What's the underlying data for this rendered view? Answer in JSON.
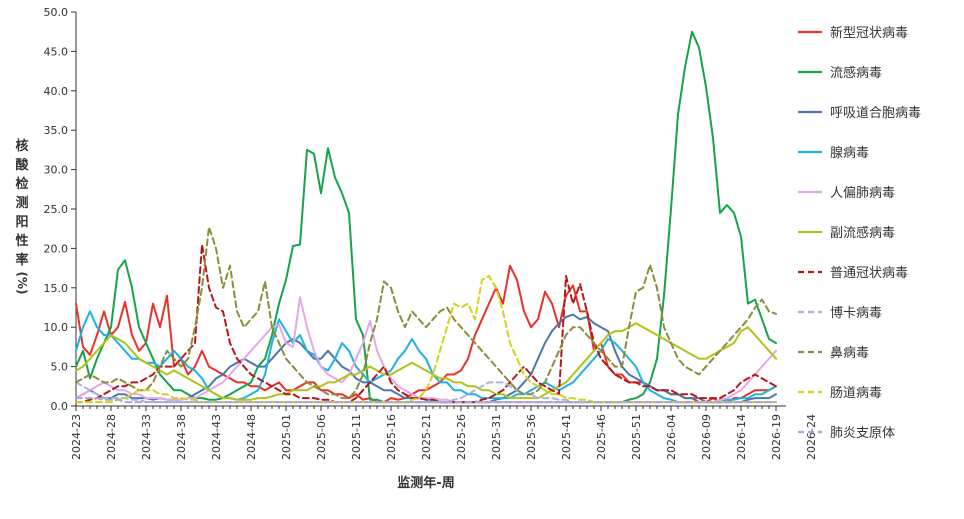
{
  "chart_data": {
    "type": "line",
    "title": "",
    "xlabel": "监测年-周",
    "ylabel": "核酸检测阳性率(%)",
    "ylim": [
      0,
      50
    ],
    "yticks": [
      "0.0",
      "5.0",
      "10.0",
      "15.0",
      "20.0",
      "25.0",
      "30.0",
      "35.0",
      "40.0",
      "45.0",
      "50.0"
    ],
    "xtick_labels": [
      "2024-23",
      "2024-28",
      "2024-33",
      "2024-38",
      "2024-43",
      "2024-48",
      "2025-01",
      "2025-06",
      "2025-11",
      "2025-16",
      "2025-21",
      "2025-26",
      "2025-31",
      "2025-36",
      "2025-41",
      "2025-46",
      "2025-51",
      "2026-04",
      "2026-09",
      "2026-14",
      "2026-19",
      "2026-24"
    ],
    "num_weeks": 101,
    "legend_position": "right",
    "grid": false,
    "series": [
      {
        "name": "新型冠状病毒",
        "color": "#e8312a",
        "dash": "solid",
        "values": [
          13,
          7.5,
          6.5,
          9,
          12,
          9,
          10,
          13.2,
          9,
          7,
          8,
          13,
          10,
          14,
          5,
          6,
          4,
          5,
          7,
          5,
          4.5,
          4,
          3.5,
          3,
          3,
          2.5,
          2.5,
          2,
          2.5,
          3,
          2,
          2,
          2.5,
          3,
          3,
          2,
          2,
          1.5,
          1.5,
          1,
          1.5,
          0.8,
          1,
          0.5,
          0.5,
          1,
          0.8,
          1,
          1.5,
          2,
          2,
          2.5,
          3,
          4,
          4,
          4.5,
          6,
          9,
          11,
          13,
          15,
          13,
          17.8,
          16,
          12,
          10,
          11,
          14.5,
          13,
          10,
          14,
          15.3,
          12,
          12,
          7,
          8,
          5,
          4,
          4,
          3,
          3,
          3,
          2.5,
          2,
          2,
          1.5,
          1.5,
          1,
          1,
          0.5,
          0.5,
          1,
          0.5,
          0.5,
          1,
          1,
          1.5,
          2,
          2,
          2,
          2.5
        ]
      },
      {
        "name": "流感病毒",
        "color": "#17a34a",
        "dash": "solid",
        "values": [
          5,
          7,
          3.5,
          6,
          8,
          10,
          17.3,
          18.5,
          15,
          10,
          8,
          6,
          4,
          3,
          2,
          2,
          1.5,
          1,
          1,
          0.8,
          0.8,
          1,
          1.5,
          2,
          2.5,
          3,
          5,
          6,
          9,
          13,
          16,
          20.3,
          20.5,
          32.5,
          32,
          27,
          32.7,
          29,
          27,
          24.5,
          11,
          9,
          0.8,
          0.8,
          0.5,
          0.5,
          0.5,
          0.5,
          0.5,
          0.5,
          0.5,
          0.5,
          0.5,
          0.5,
          0.5,
          0.5,
          0.5,
          0.5,
          0.5,
          0.5,
          0.5,
          0.5,
          0.5,
          0.5,
          0.5,
          0.5,
          0.5,
          0.5,
          0.5,
          0.5,
          0.5,
          0.5,
          0.5,
          0.5,
          0.5,
          0.5,
          0.5,
          0.5,
          0.5,
          0.8,
          1,
          1.5,
          3,
          6,
          14,
          25,
          37,
          43,
          47.5,
          45.5,
          40.5,
          34,
          24.5,
          25.5,
          24.5,
          21.5,
          13,
          13.5,
          11,
          8.5,
          8
        ]
      },
      {
        "name": "呼吸道合胞病毒",
        "color": "#4a78a8",
        "dash": "solid",
        "values": [
          1,
          1.5,
          2,
          1.5,
          1,
          1,
          1.5,
          1.5,
          1,
          1,
          1,
          0.8,
          1,
          0.8,
          0.8,
          0.8,
          1,
          1.5,
          2,
          2.5,
          3.5,
          4,
          5,
          5.5,
          6,
          5.5,
          5,
          5,
          6,
          7,
          8,
          8.5,
          8,
          7,
          6,
          6,
          7,
          6,
          5,
          4.5,
          3.5,
          3,
          3,
          2.5,
          2,
          2,
          1.5,
          1,
          1,
          1,
          0.8,
          0.8,
          0.5,
          0.5,
          0.5,
          0.5,
          0.5,
          0.5,
          0.5,
          0.5,
          0.8,
          1,
          1.5,
          2,
          3,
          4,
          6,
          8,
          9.5,
          10.5,
          11.3,
          11.6,
          11,
          11.3,
          10.5,
          10,
          9.5,
          7,
          5,
          4,
          3.5,
          3,
          2.5,
          2,
          2,
          1.5,
          1.5,
          1,
          1,
          1,
          0.5,
          0.5,
          0.5,
          0.5,
          0.5,
          0.5,
          0.8,
          1,
          1,
          1,
          1.5
        ]
      },
      {
        "name": "腺病毒",
        "color": "#1fb2e0",
        "dash": "solid",
        "values": [
          7,
          10,
          12,
          10,
          9,
          9,
          8,
          7,
          6,
          6,
          5.5,
          5.5,
          5,
          6,
          7,
          6,
          5,
          4.5,
          3.5,
          2,
          1.5,
          1,
          1,
          0.8,
          1,
          1.5,
          2,
          4,
          8,
          11,
          9.5,
          8,
          9,
          7,
          6.5,
          5,
          4.5,
          6,
          8,
          7,
          5,
          4,
          3,
          3.5,
          4,
          4.5,
          6,
          7,
          8.5,
          7,
          6,
          4,
          3,
          3,
          2,
          2,
          1.5,
          1.5,
          1,
          1,
          1,
          1,
          1,
          1.5,
          1.5,
          2,
          2.5,
          3,
          2.5,
          2,
          2.5,
          3,
          4,
          5,
          6,
          7,
          8.5,
          8,
          7,
          6,
          5,
          3,
          2,
          1.5,
          1,
          0.8,
          0.5,
          0.5,
          0.5,
          0.5,
          0.5,
          0.5,
          0.5,
          0.8,
          0.8,
          1,
          1,
          1.5,
          1.5,
          2,
          2.5
        ]
      },
      {
        "name": "人偏肺病毒",
        "color": "#e6a7e6",
        "dash": "solid",
        "values": [
          1,
          1.5,
          2,
          2.5,
          3,
          2.5,
          2,
          2,
          1.5,
          1.5,
          1,
          1,
          1,
          0.8,
          0.8,
          0.8,
          1,
          1,
          1.5,
          2,
          2.5,
          3,
          4,
          5,
          6,
          7,
          8,
          9,
          10,
          10.3,
          8,
          7.5,
          13.8,
          10,
          7,
          5,
          4,
          3.5,
          3,
          4,
          6,
          8,
          10.8,
          7,
          5,
          3.5,
          2.5,
          2,
          1.5,
          1,
          1,
          1,
          0.8,
          0.8,
          0.5,
          0.5,
          0.5,
          0.5,
          0.5,
          0.5,
          0.5,
          0.5,
          0.5,
          0.5,
          0.5,
          0.5,
          0.5,
          0.5,
          0.5,
          0.5,
          0.5,
          0.5,
          0.5,
          0.5,
          0.5,
          0.5,
          0.5,
          0.5,
          0.5,
          0.5,
          0.5,
          0.5,
          0.5,
          0.5,
          0.5,
          0.5,
          0.5,
          0.5,
          0.5,
          0.5,
          0.5,
          0.5,
          0.8,
          1,
          1.5,
          2,
          3,
          4,
          5,
          6,
          7
        ]
      },
      {
        "name": "副流感病毒",
        "color": "#b2c21a",
        "dash": "solid",
        "values": [
          4.5,
          5,
          6,
          7,
          8,
          9,
          8.5,
          8,
          7,
          6,
          5.5,
          5,
          4.5,
          4,
          4.5,
          4,
          3.5,
          3,
          2.5,
          2,
          1.5,
          1,
          1,
          0.8,
          0.8,
          0.8,
          1,
          1,
          1.2,
          1.5,
          1.5,
          2,
          2,
          2,
          2.5,
          2.5,
          3,
          3,
          3.5,
          4,
          4,
          4.5,
          5,
          4.5,
          4,
          4,
          4.5,
          5,
          5.5,
          5,
          4.5,
          4,
          3.5,
          3.5,
          3,
          3,
          2.5,
          2.5,
          2,
          2,
          1.5,
          1.5,
          1,
          1,
          1,
          1,
          1,
          1.5,
          2,
          2.5,
          3,
          4,
          5,
          6,
          7,
          8,
          9,
          9.5,
          9.5,
          10,
          10.5,
          10,
          9.5,
          9,
          8.5,
          8,
          7.5,
          7,
          6.5,
          6,
          6,
          6.5,
          7,
          7.5,
          8,
          9.5,
          10,
          9,
          8,
          7,
          6
        ]
      },
      {
        "name": "普通冠状病毒",
        "color": "#b01a1a",
        "dash": "dashed",
        "values": [
          0.5,
          0.5,
          0.8,
          1,
          1.5,
          2,
          2.5,
          2.5,
          3,
          3,
          3.5,
          4,
          5,
          5,
          5,
          6,
          7,
          8,
          20.5,
          15,
          12.5,
          12,
          8,
          6,
          5,
          4,
          3.5,
          3,
          2.5,
          2,
          1.5,
          1.5,
          1,
          1,
          1,
          0.8,
          0.8,
          0.5,
          0.5,
          0.5,
          1,
          2,
          3,
          4,
          5,
          3,
          2,
          1.5,
          1,
          1,
          0.8,
          0.8,
          0.5,
          0.5,
          0.5,
          0.5,
          0.5,
          0.5,
          0.8,
          1,
          1.5,
          2,
          3,
          4,
          5,
          4,
          3,
          2.5,
          2,
          1.5,
          16.5,
          13,
          15.5,
          12,
          8,
          6,
          5,
          4,
          3.5,
          3,
          3,
          2.5,
          2.5,
          2,
          2,
          2,
          1.5,
          1.5,
          1.5,
          1,
          1,
          1,
          1,
          1.5,
          2,
          3,
          3.5,
          4,
          3.5,
          3,
          2.5
        ]
      },
      {
        "name": "博卡病毒",
        "color": "#a7b6d6",
        "dash": "dashed",
        "values": [
          3,
          2.5,
          2,
          1.5,
          1,
          1,
          1,
          1,
          0.8,
          0.8,
          0.5,
          0.5,
          0.5,
          0.5,
          0.5,
          0.5,
          0.5,
          0.5,
          0.5,
          0.5,
          0.5,
          0.5,
          0.5,
          0.5,
          0.5,
          0.5,
          0.5,
          0.5,
          0.5,
          0.5,
          0.5,
          0.5,
          0.5,
          0.5,
          0.5,
          0.5,
          0.5,
          0.5,
          0.5,
          0.5,
          0.5,
          0.5,
          0.5,
          0.5,
          0.5,
          0.5,
          0.5,
          0.5,
          0.5,
          0.5,
          0.5,
          0.5,
          0.5,
          0.5,
          0.8,
          1,
          1.5,
          2,
          2.5,
          3,
          3,
          3,
          2.5,
          2,
          1.5,
          1.5,
          1,
          1,
          1,
          0.8,
          0.8,
          0.5,
          0.5,
          0.5,
          0.5,
          0.5,
          0.5,
          0.5,
          0.5,
          0.5,
          0.5,
          0.5,
          0.5,
          0.5,
          0.5,
          0.5,
          0.5,
          0.5,
          0.5,
          0.5,
          0.5,
          0.5,
          0.5,
          0.5,
          0.5,
          0.5,
          0.5,
          0.5,
          0.5,
          0.5,
          0.5
        ]
      },
      {
        "name": "鼻病毒",
        "color": "#8c8c3a",
        "dash": "dashed",
        "values": [
          3,
          3.5,
          4,
          3.5,
          3,
          3,
          3.5,
          3,
          2.5,
          2,
          2,
          3,
          5,
          7,
          6,
          5,
          6,
          10,
          15,
          22.7,
          20,
          15,
          17.8,
          12,
          10,
          11,
          12,
          15.8,
          10,
          8,
          6,
          5,
          4,
          3,
          2.5,
          2,
          1.5,
          1.5,
          1,
          1,
          2,
          4,
          8,
          11,
          15.8,
          15,
          12,
          10,
          12,
          11,
          10,
          11,
          12,
          12.5,
          11,
          10,
          9,
          8,
          7,
          6,
          5,
          4,
          3,
          2,
          1.5,
          1.5,
          2,
          3,
          5,
          7,
          9,
          10,
          10,
          9,
          8,
          7,
          6,
          5,
          5,
          10,
          14.5,
          15,
          17.9,
          15,
          10,
          8,
          6,
          5,
          4.5,
          4,
          5,
          6,
          7,
          8,
          9,
          10,
          11,
          12.5,
          13.5,
          12,
          11.7
        ]
      },
      {
        "name": "肠道病毒",
        "color": "#d2d21a",
        "dash": "dashed",
        "values": [
          0.5,
          0.5,
          0.5,
          0.5,
          0.5,
          0.5,
          0.8,
          1,
          1.5,
          2,
          2,
          2,
          1.5,
          1.5,
          1,
          1,
          0.8,
          0.8,
          0.5,
          0.5,
          0.5,
          0.5,
          0.5,
          0.5,
          0.5,
          0.5,
          0.5,
          0.5,
          0.5,
          0.5,
          0.5,
          0.5,
          0.5,
          0.5,
          0.5,
          0.5,
          0.5,
          0.5,
          0.5,
          0.5,
          0.5,
          0.5,
          0.5,
          0.5,
          0.5,
          0.5,
          0.5,
          0.5,
          0.8,
          1,
          2,
          4,
          7,
          10,
          13,
          12.5,
          13,
          11,
          16,
          16.5,
          15,
          12,
          8,
          6,
          4,
          3,
          2.5,
          2,
          1.5,
          1.5,
          1,
          1,
          0.8,
          0.8,
          0.5,
          0.5,
          0.5,
          0.5,
          0.5,
          0.5,
          0.5,
          0.5,
          0.5,
          0.5,
          0.5,
          0.5,
          0.5,
          0.5,
          0.5,
          0.5,
          0.5,
          0.5,
          0.5,
          0.5,
          0.5,
          0.5,
          0.5,
          0.5,
          0.5,
          0.5,
          0.5
        ]
      },
      {
        "name": "肺炎支原体",
        "color": "#b0a0dc",
        "dash": "dashed",
        "values": [
          1,
          1,
          1,
          1,
          0.8,
          0.8,
          0.8,
          0.5,
          0.5,
          0.5,
          0.5,
          0.5,
          0.5,
          0.5,
          0.5,
          0.5,
          0.5,
          0.5,
          0.5,
          0.5,
          0.5,
          0.5,
          0.5,
          0.5,
          0.5,
          0.5,
          0.5,
          0.5,
          0.5,
          0.5,
          0.5,
          0.5,
          0.5,
          0.5,
          0.5,
          0.5,
          0.5,
          0.5,
          0.5,
          0.5,
          0.5,
          0.5,
          0.5,
          0.5,
          0.5,
          0.5,
          0.5,
          0.5,
          0.5,
          0.5,
          0.5,
          0.5,
          0.5,
          0.5,
          0.5,
          0.5,
          0.5,
          0.5,
          0.5,
          0.5,
          0.5,
          0.5,
          0.5,
          0.5,
          0.5,
          0.5,
          0.5,
          0.5,
          0.5,
          0.5,
          0.5,
          0.5,
          0.5,
          0.5,
          0.5,
          0.5,
          0.5,
          0.5,
          0.5,
          0.5,
          0.5,
          0.5,
          0.5,
          0.5,
          0.5,
          0.5,
          0.5,
          0.5,
          0.5,
          0.5,
          0.5,
          0.5,
          0.5,
          0.5,
          0.5,
          0.5,
          0.5,
          0.5,
          0.5,
          0.5,
          0.5
        ]
      }
    ]
  }
}
